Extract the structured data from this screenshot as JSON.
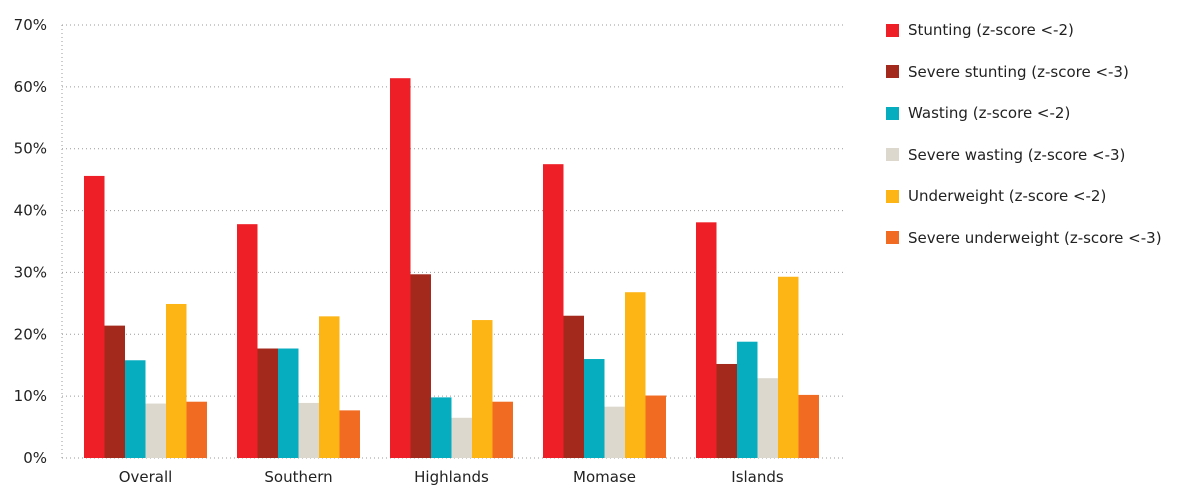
{
  "chart_data": {
    "type": "bar",
    "categories": [
      "Overall",
      "Southern",
      "Highlands",
      "Momase",
      "Islands"
    ],
    "ylim": [
      0,
      70
    ],
    "yticks": [
      "0%",
      "10%",
      "20%",
      "30%",
      "40%",
      "50%",
      "60%",
      "70%"
    ],
    "ytick_values": [
      0,
      10,
      20,
      30,
      40,
      50,
      60,
      70
    ],
    "grid": "horizontal dotted",
    "legend_position": "right",
    "series": [
      {
        "name": "Stunting (z-score <-2)",
        "color": "#ee1f26",
        "values": [
          45.6,
          37.8,
          61.4,
          47.5,
          38.1
        ]
      },
      {
        "name": "Severe stunting (z-score <-3)",
        "color": "#a3291d",
        "values": [
          21.4,
          17.7,
          29.7,
          23.0,
          15.2
        ]
      },
      {
        "name": "Wasting (z-score <-2)",
        "color": "#06adbf",
        "values": [
          15.8,
          17.7,
          9.8,
          16.0,
          18.8
        ]
      },
      {
        "name": "Severe wasting (z-score <-3)",
        "color": "#dcd8cd",
        "values": [
          8.8,
          8.9,
          6.5,
          8.3,
          12.9
        ]
      },
      {
        "name": "Underweight (z-score <-2)",
        "color": "#fdb415",
        "values": [
          24.9,
          22.9,
          22.3,
          26.8,
          29.3
        ]
      },
      {
        "name": "Severe underweight (z-score <-3)",
        "color": "#f26b23",
        "values": [
          9.1,
          7.7,
          9.1,
          10.1,
          10.2
        ]
      }
    ]
  }
}
